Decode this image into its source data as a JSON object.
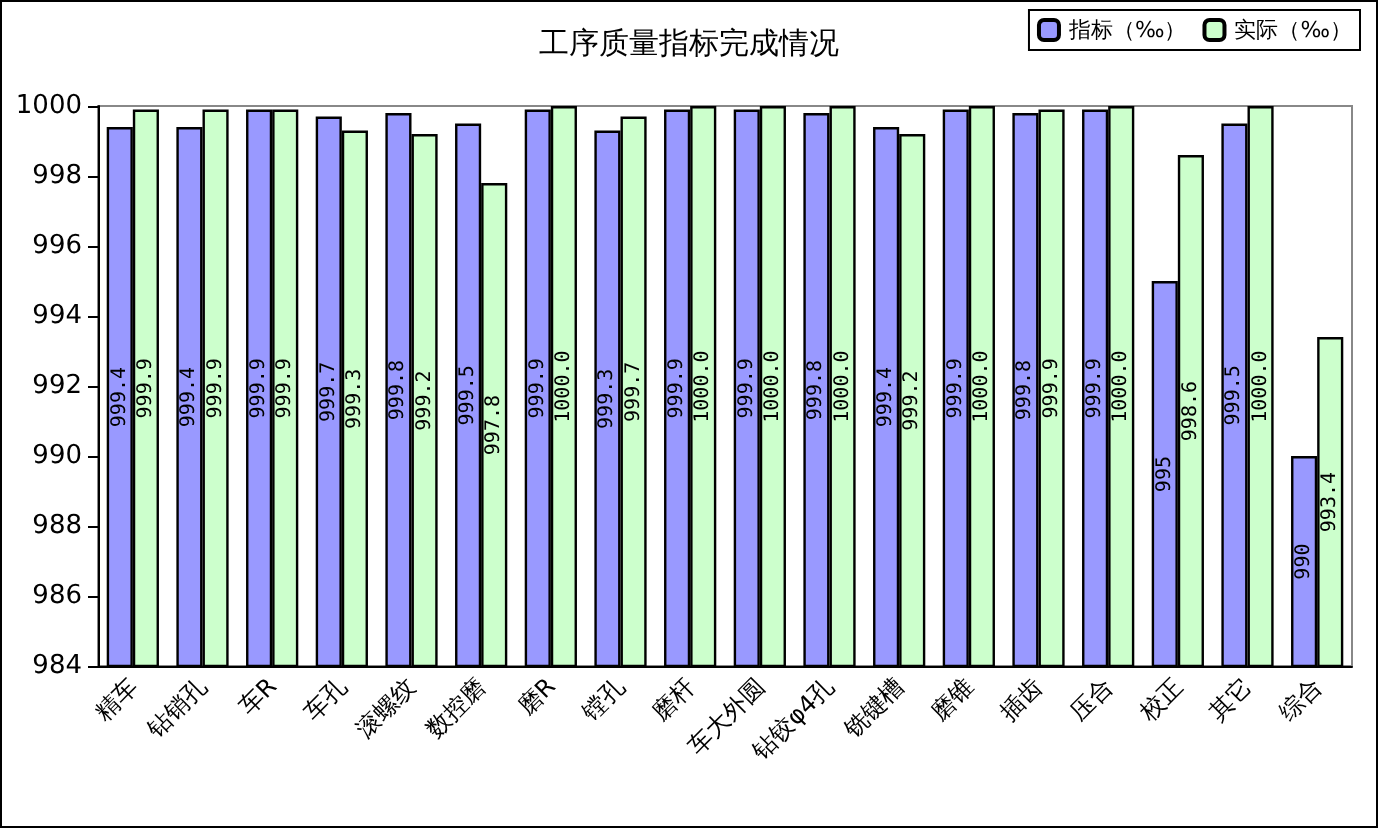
{
  "chart_data": {
    "type": "bar",
    "title": "工序质量指标完成情况",
    "categories": [
      "精车",
      "钻销孔",
      "车R",
      "车孔",
      "滚螺纹",
      "数控磨",
      "磨R",
      "镗孔",
      "磨杆",
      "车大外圆",
      "钻铰φ4孔",
      "铣键槽",
      "磨锥",
      "插齿",
      "压合",
      "校正",
      "其它",
      "综合"
    ],
    "series": [
      {
        "name": "指标（‰）",
        "color": "#9999ff",
        "values": [
          999.4,
          999.4,
          999.9,
          999.7,
          999.8,
          999.5,
          999.9,
          999.3,
          999.9,
          999.9,
          999.8,
          999.4,
          999.9,
          999.8,
          999.9,
          995,
          999.5,
          990
        ],
        "value_labels": [
          "999.4",
          "999.4",
          "999.9",
          "999.7",
          "999.8",
          "999.5",
          "999.9",
          "999.3",
          "999.9",
          "999.9",
          "999.8",
          "999.4",
          "999.9",
          "999.8",
          "999.9",
          "995",
          "999.5",
          "990"
        ]
      },
      {
        "name": "实际（‰）",
        "color": "#ccffcc",
        "values": [
          999.9,
          999.9,
          999.9,
          999.3,
          999.2,
          997.8,
          1000.0,
          999.7,
          1000.0,
          1000.0,
          1000.0,
          999.2,
          1000.0,
          999.9,
          1000.0,
          998.6,
          1000.0,
          993.4
        ],
        "value_labels": [
          "999.9",
          "999.9",
          "999.9",
          "999.3",
          "999.2",
          "997.8",
          "1000.0",
          "999.7",
          "1000.0",
          "1000.0",
          "1000.0",
          "999.2",
          "1000.0",
          "999.9",
          "1000.0",
          "998.6",
          "1000.0",
          "993.4"
        ]
      }
    ],
    "ylim": [
      984,
      1000
    ],
    "yticks": [
      984,
      986,
      988,
      990,
      992,
      994,
      996,
      998,
      1000
    ],
    "grid": false,
    "legend": "top right"
  }
}
